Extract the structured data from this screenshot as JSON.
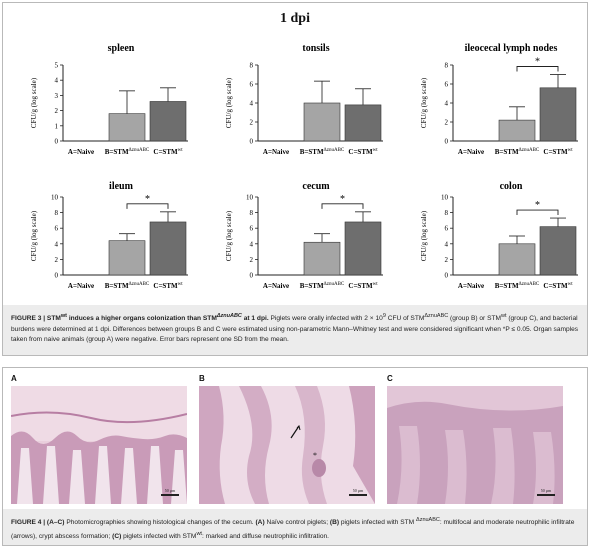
{
  "figure3": {
    "main_title": "1 dpi",
    "caption": {
      "label": "FIGURE 3 |",
      "title_pre": " STM",
      "title_sup1": "wt",
      "title_mid": " induces a higher organs colonization than STM",
      "title_sup2": "ΔznuABC",
      "title_post": " at 1 dpi.",
      "text_1": " Piglets were orally infected with 2 × 10",
      "text_exp": "9",
      "text_2": " CFU of STM",
      "text_sup3": "ΔznuABC",
      "text_3": " (group B) or STM",
      "text_sup4": "wt",
      "text_4": " (group C), and bacterial burdens were determined at 1 dpi. Differences between groups B and C were estimated using non-parametric Mann–Whitney test and were considered significant when *P ≤ 0.05. Organ samples taken from naive animals (group A) were negative. Error bars represent one SD from the mean."
    }
  },
  "chart_data": [
    {
      "type": "bar",
      "title": "spleen",
      "ylabel": "CFU/g (log scale)",
      "ylim": [
        0,
        5
      ],
      "yticks": [
        0,
        1,
        2,
        3,
        4,
        5
      ],
      "categories": [
        "A=Naive",
        "B=STM",
        "C=STM"
      ],
      "category_sups": [
        "",
        "ΔznuABC",
        "wt"
      ],
      "values": [
        0,
        1.8,
        2.6
      ],
      "errors": [
        0,
        1.5,
        0.9
      ],
      "significance": "",
      "colors": [
        "#ffffff",
        "#a5a5a5",
        "#6e6e6e"
      ]
    },
    {
      "type": "bar",
      "title": "tonsils",
      "ylabel": "CFU/g (log scale)",
      "ylim": [
        0,
        8
      ],
      "yticks": [
        0,
        2,
        4,
        6,
        8
      ],
      "categories": [
        "A=Naive",
        "B=STM",
        "C=STM"
      ],
      "category_sups": [
        "",
        "ΔznuABC",
        "wt"
      ],
      "values": [
        0,
        4.0,
        3.8
      ],
      "errors": [
        0,
        2.3,
        1.7
      ],
      "significance": "",
      "colors": [
        "#ffffff",
        "#a5a5a5",
        "#6e6e6e"
      ]
    },
    {
      "type": "bar",
      "title": "ileocecal lymph nodes",
      "ylabel": "CFU/g (log scale)",
      "ylim": [
        0,
        8
      ],
      "yticks": [
        0,
        2,
        4,
        6,
        8
      ],
      "categories": [
        "A=Naive",
        "B=STM",
        "C=STM"
      ],
      "category_sups": [
        "",
        "ΔznuABC",
        "wt"
      ],
      "values": [
        0,
        2.2,
        5.6
      ],
      "errors": [
        0,
        1.4,
        1.4
      ],
      "significance": "*",
      "colors": [
        "#ffffff",
        "#a5a5a5",
        "#6e6e6e"
      ]
    },
    {
      "type": "bar",
      "title": "ileum",
      "ylabel": "CFU/g (log scale)",
      "ylim": [
        0,
        10
      ],
      "yticks": [
        0,
        2,
        4,
        6,
        8,
        10
      ],
      "categories": [
        "A=Naive",
        "B=STM",
        "C=STM"
      ],
      "category_sups": [
        "",
        "ΔznuABC",
        "wt"
      ],
      "values": [
        0,
        4.4,
        6.8
      ],
      "errors": [
        0,
        0.9,
        1.3
      ],
      "significance": "*",
      "colors": [
        "#ffffff",
        "#a5a5a5",
        "#6e6e6e"
      ]
    },
    {
      "type": "bar",
      "title": "cecum",
      "ylabel": "CFU/g (log scale)",
      "ylim": [
        0,
        10
      ],
      "yticks": [
        0,
        2,
        4,
        6,
        8,
        10
      ],
      "categories": [
        "A=Naive",
        "B=STM",
        "C=STM"
      ],
      "category_sups": [
        "",
        "ΔznuABC",
        "wt"
      ],
      "values": [
        0,
        4.2,
        6.8
      ],
      "errors": [
        0,
        1.1,
        1.3
      ],
      "significance": "*",
      "colors": [
        "#ffffff",
        "#a5a5a5",
        "#6e6e6e"
      ]
    },
    {
      "type": "bar",
      "title": "colon",
      "ylabel": "CFU/g (log scale)",
      "ylim": [
        0,
        10
      ],
      "yticks": [
        0,
        2,
        4,
        6,
        8,
        10
      ],
      "categories": [
        "A=Naive",
        "B=STM",
        "C=STM"
      ],
      "category_sups": [
        "",
        "ΔznuABC",
        "wt"
      ],
      "values": [
        0,
        4.0,
        6.2
      ],
      "errors": [
        0,
        1.0,
        1.1
      ],
      "significance": "*",
      "colors": [
        "#ffffff",
        "#a5a5a5",
        "#6e6e6e"
      ]
    }
  ],
  "figure4": {
    "panels": [
      {
        "label": "A",
        "scale_text": "50 µm",
        "tint": "#e7c8d8"
      },
      {
        "label": "B",
        "scale_text": "50 µm",
        "tint": "#ead3df"
      },
      {
        "label": "C",
        "scale_text": "50 µm",
        "tint": "#d9bcd2"
      }
    ],
    "caption": {
      "label": "FIGURE 4 |",
      "label_2": " (A–C)",
      "text_1": " Photomicrographies showing histological changes of the cecum. ",
      "a_label": "(A)",
      "a_text": " Naïve control piglets; ",
      "b_label": "(B)",
      "b_text": " piglets infected with STM ",
      "b_sup": "ΔznuABC",
      "b_text_2": ": multifocal and moderate neutrophilic infiltrate (arrows), crypt abscess formation; ",
      "c_label": "(C)",
      "c_text": " piglets infected with STM",
      "c_sup": "wt",
      "c_text_2": ": marked and diffuse neutrophilic infiltration."
    }
  }
}
